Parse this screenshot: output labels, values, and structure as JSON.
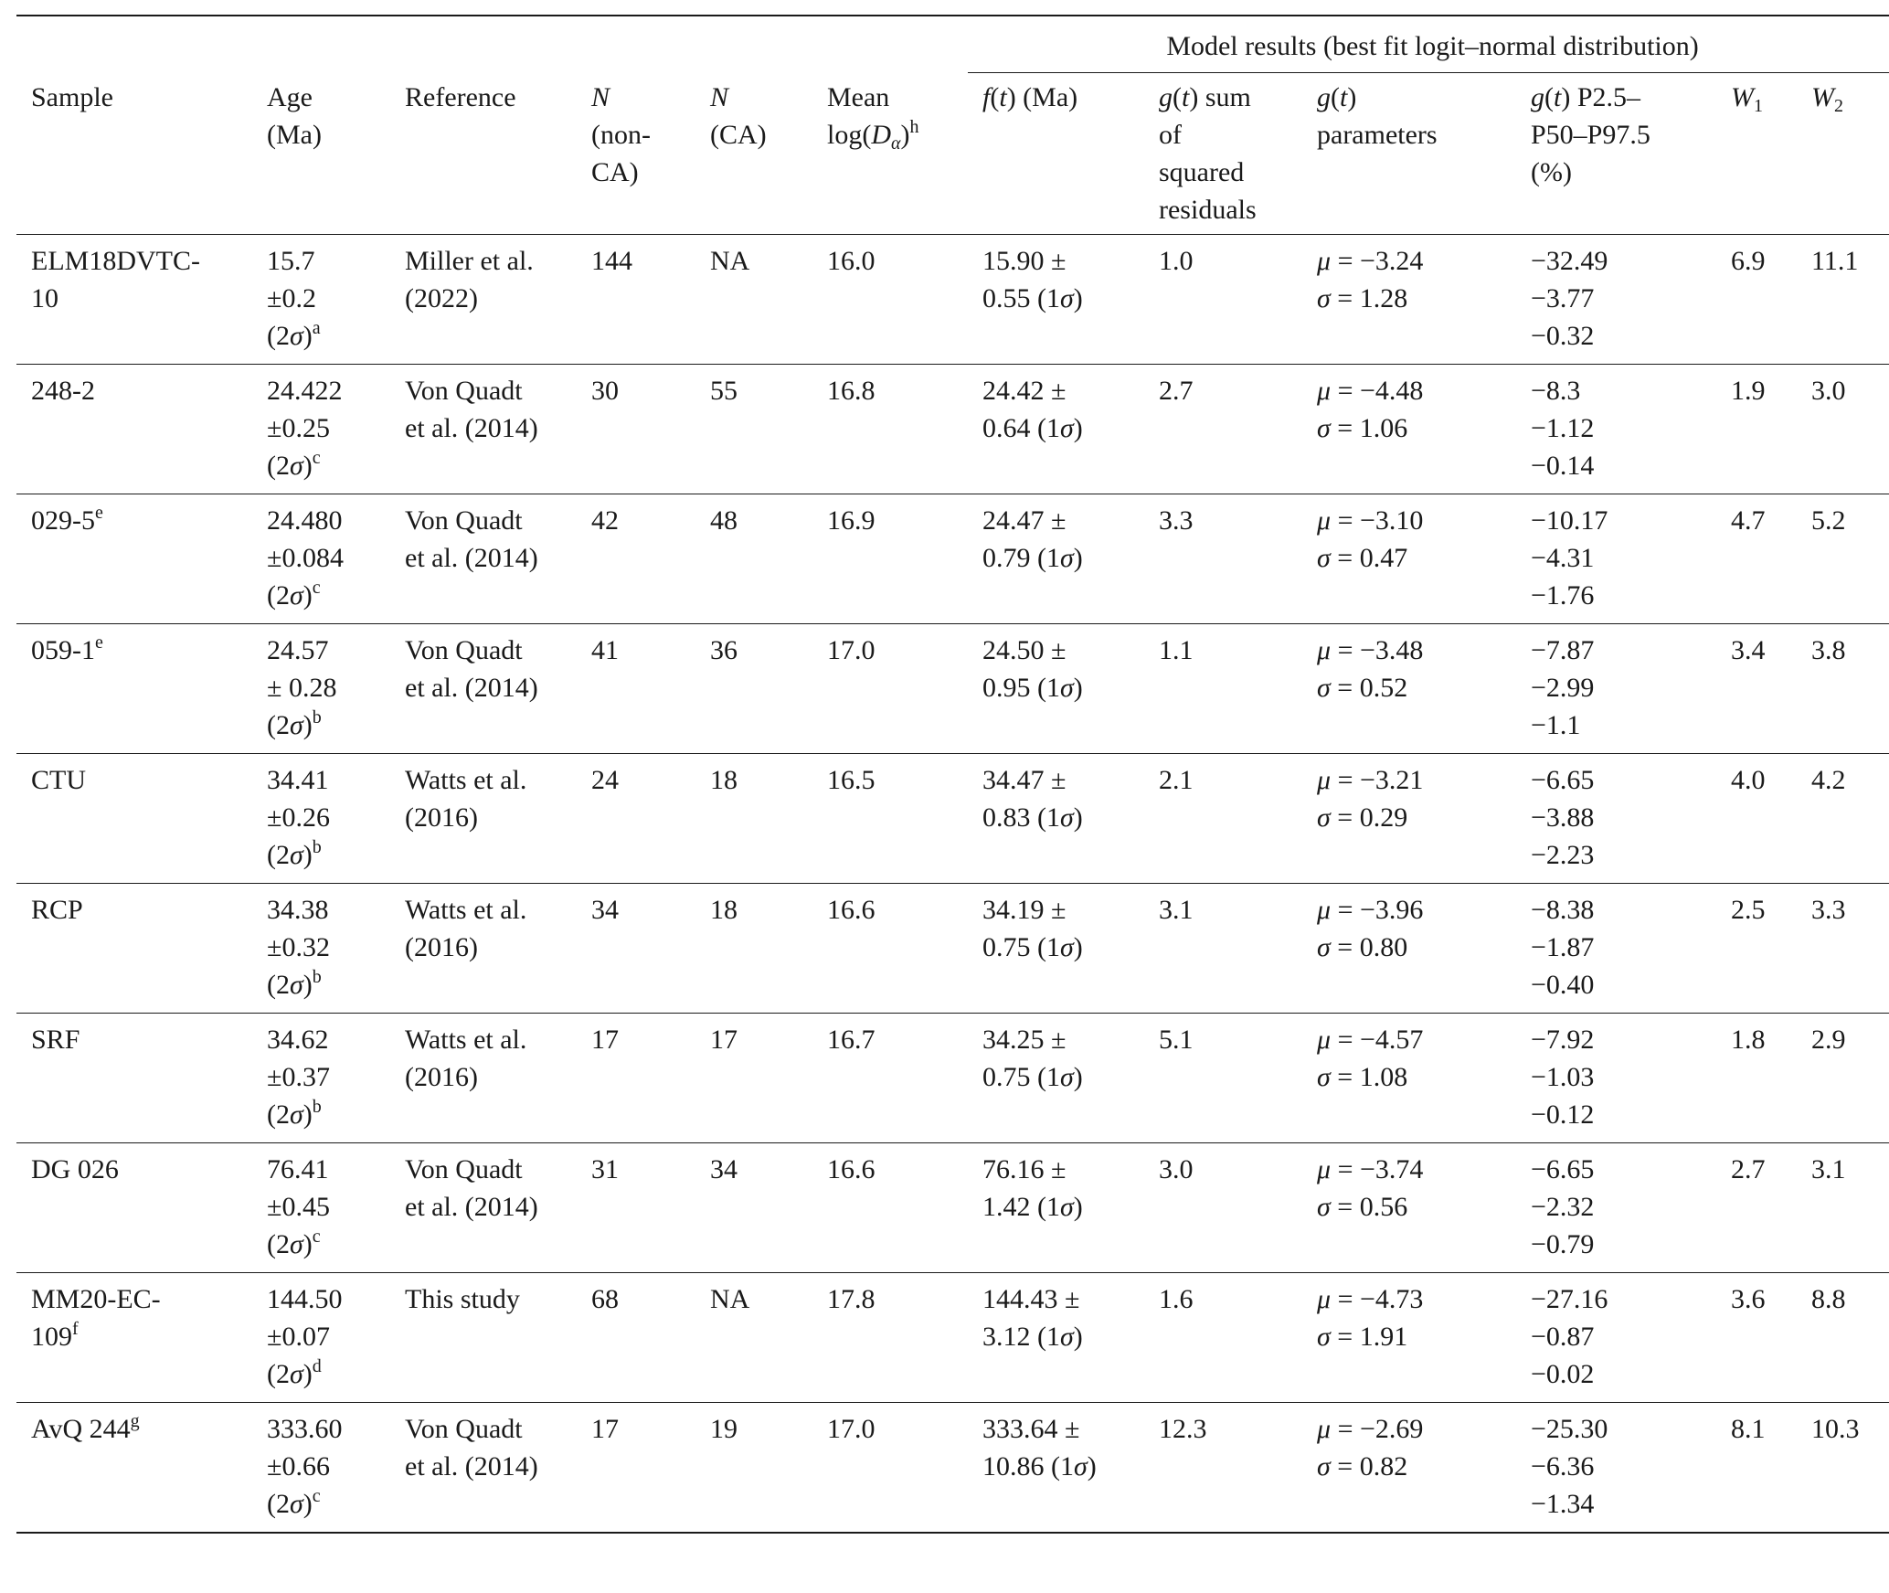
{
  "table": {
    "group_header": "Model results (best fit logit–normal distribution)",
    "columns": [
      {
        "key": "sample",
        "lines": [
          "Sample"
        ]
      },
      {
        "key": "age",
        "lines": [
          "Age",
          "(Ma)"
        ]
      },
      {
        "key": "reference",
        "lines": [
          "Reference"
        ]
      },
      {
        "key": "n_nonca",
        "lines": [
          "N",
          "(non-",
          "CA)"
        ]
      },
      {
        "key": "n_ca",
        "lines": [
          "N",
          "(CA)"
        ]
      },
      {
        "key": "mean_log",
        "lines": [
          "Mean",
          "log(Dα)h"
        ]
      },
      {
        "key": "ft",
        "lines": [
          "f(t) (Ma)"
        ]
      },
      {
        "key": "gt_ssr",
        "lines": [
          "g(t) sum",
          "of",
          "squared",
          "residuals"
        ]
      },
      {
        "key": "gt_params",
        "lines": [
          "g(t)",
          "parameters"
        ]
      },
      {
        "key": "gt_pct",
        "lines": [
          "g(t) P2.5–",
          "P50–P97.5",
          "(%)"
        ]
      },
      {
        "key": "w1",
        "lines": [
          "W1"
        ]
      },
      {
        "key": "w2",
        "lines": [
          "W2"
        ]
      }
    ],
    "rows": [
      {
        "sample": [
          "ELM18DVTC-",
          "10"
        ],
        "sample_sup": "",
        "age": [
          "15.7",
          "±0.2",
          "(2σ)"
        ],
        "age_sup": "a",
        "reference": [
          "Miller et al.",
          "(2022)"
        ],
        "n_nonca": "144",
        "n_ca": "NA",
        "mean_log": "16.0",
        "ft": [
          "15.90 ±",
          "0.55 (1σ)"
        ],
        "gt_ssr": "1.0",
        "gt_params": [
          "μ = −3.24",
          "σ = 1.28"
        ],
        "gt_pct": [
          "−32.49",
          "−3.77",
          "−0.32"
        ],
        "w1": "6.9",
        "w2": "11.1"
      },
      {
        "sample": [
          "248-2"
        ],
        "sample_sup": "",
        "age": [
          "24.422",
          "±0.25",
          "(2σ)"
        ],
        "age_sup": "c",
        "reference": [
          "Von Quadt",
          "et al. (2014)"
        ],
        "n_nonca": "30",
        "n_ca": "55",
        "mean_log": "16.8",
        "ft": [
          "24.42 ±",
          "0.64 (1σ)"
        ],
        "gt_ssr": "2.7",
        "gt_params": [
          "μ = −4.48",
          "σ = 1.06"
        ],
        "gt_pct": [
          "−8.3",
          "−1.12",
          "−0.14"
        ],
        "w1": "1.9",
        "w2": "3.0"
      },
      {
        "sample": [
          "029-5"
        ],
        "sample_sup": "e",
        "age": [
          "24.480",
          "±0.084",
          "(2σ)"
        ],
        "age_sup": "c",
        "reference": [
          "Von Quadt",
          "et al. (2014)"
        ],
        "n_nonca": "42",
        "n_ca": "48",
        "mean_log": "16.9",
        "ft": [
          "24.47 ±",
          "0.79 (1σ)"
        ],
        "gt_ssr": "3.3",
        "gt_params": [
          "μ = −3.10",
          "σ = 0.47"
        ],
        "gt_pct": [
          "−10.17",
          "−4.31",
          "−1.76"
        ],
        "w1": "4.7",
        "w2": "5.2"
      },
      {
        "sample": [
          "059-1"
        ],
        "sample_sup": "e",
        "age": [
          "24.57",
          "± 0.28",
          "(2σ)"
        ],
        "age_sup": "b",
        "reference": [
          "Von Quadt",
          "et al. (2014)"
        ],
        "n_nonca": "41",
        "n_ca": "36",
        "mean_log": "17.0",
        "ft": [
          "24.50 ±",
          "0.95 (1σ)"
        ],
        "gt_ssr": "1.1",
        "gt_params": [
          "μ = −3.48",
          "σ = 0.52"
        ],
        "gt_pct": [
          "−7.87",
          "−2.99",
          "−1.1"
        ],
        "w1": "3.4",
        "w2": "3.8"
      },
      {
        "sample": [
          "CTU"
        ],
        "sample_sup": "",
        "age": [
          "34.41",
          "±0.26",
          "(2σ)"
        ],
        "age_sup": "b",
        "reference": [
          "Watts et al.",
          "(2016)"
        ],
        "n_nonca": "24",
        "n_ca": "18",
        "mean_log": "16.5",
        "ft": [
          "34.47 ±",
          "0.83 (1σ)"
        ],
        "gt_ssr": "2.1",
        "gt_params": [
          "μ = −3.21",
          "σ = 0.29"
        ],
        "gt_pct": [
          "−6.65",
          "−3.88",
          "−2.23"
        ],
        "w1": "4.0",
        "w2": "4.2"
      },
      {
        "sample": [
          "RCP"
        ],
        "sample_sup": "",
        "age": [
          "34.38",
          "±0.32",
          "(2σ)"
        ],
        "age_sup": "b",
        "reference": [
          "Watts et al.",
          "(2016)"
        ],
        "n_nonca": "34",
        "n_ca": "18",
        "mean_log": "16.6",
        "ft": [
          "34.19 ±",
          "0.75 (1σ)"
        ],
        "gt_ssr": "3.1",
        "gt_params": [
          "μ = −3.96",
          "σ = 0.80"
        ],
        "gt_pct": [
          "−8.38",
          "−1.87",
          "−0.40"
        ],
        "w1": "2.5",
        "w2": "3.3"
      },
      {
        "sample": [
          "SRF"
        ],
        "sample_sup": "",
        "age": [
          "34.62",
          "±0.37",
          "(2σ)"
        ],
        "age_sup": "b",
        "reference": [
          "Watts et al.",
          "(2016)"
        ],
        "n_nonca": "17",
        "n_ca": "17",
        "mean_log": "16.7",
        "ft": [
          "34.25 ±",
          "0.75 (1σ)"
        ],
        "gt_ssr": "5.1",
        "gt_params": [
          "μ = −4.57",
          "σ = 1.08"
        ],
        "gt_pct": [
          "−7.92",
          "−1.03",
          "−0.12"
        ],
        "w1": "1.8",
        "w2": "2.9"
      },
      {
        "sample": [
          "DG 026"
        ],
        "sample_sup": "",
        "age": [
          "76.41",
          "±0.45",
          "(2σ)"
        ],
        "age_sup": "c",
        "reference": [
          "Von Quadt",
          "et al. (2014)"
        ],
        "n_nonca": "31",
        "n_ca": "34",
        "mean_log": "16.6",
        "ft": [
          "76.16 ±",
          "1.42 (1σ)"
        ],
        "gt_ssr": "3.0",
        "gt_params": [
          "μ = −3.74",
          "σ = 0.56"
        ],
        "gt_pct": [
          "−6.65",
          "−2.32",
          "−0.79"
        ],
        "w1": "2.7",
        "w2": "3.1"
      },
      {
        "sample": [
          "MM20-EC-",
          "109"
        ],
        "sample_sup": "f",
        "age": [
          "144.50",
          "±0.07",
          "(2σ)"
        ],
        "age_sup": "d",
        "reference": [
          "This study"
        ],
        "n_nonca": "68",
        "n_ca": "NA",
        "mean_log": "17.8",
        "ft": [
          "144.43 ±",
          "3.12 (1σ)"
        ],
        "gt_ssr": "1.6",
        "gt_params": [
          "μ = −4.73",
          "σ = 1.91"
        ],
        "gt_pct": [
          "−27.16",
          "−0.87",
          "−0.02"
        ],
        "w1": "3.6",
        "w2": "8.8"
      },
      {
        "sample": [
          "AvQ 244"
        ],
        "sample_sup": "g",
        "age": [
          "333.60",
          "±0.66",
          "(2σ)"
        ],
        "age_sup": "c",
        "reference": [
          "Von Quadt",
          "et al. (2014)"
        ],
        "n_nonca": "17",
        "n_ca": "19",
        "mean_log": "17.0",
        "ft": [
          "333.64 ±",
          "10.86 (1σ)"
        ],
        "gt_ssr": "12.3",
        "gt_params": [
          "μ = −2.69",
          "σ = 0.82"
        ],
        "gt_pct": [
          "−25.30",
          "−6.36",
          "−1.34"
        ],
        "w1": "8.1",
        "w2": "10.3"
      }
    ]
  }
}
